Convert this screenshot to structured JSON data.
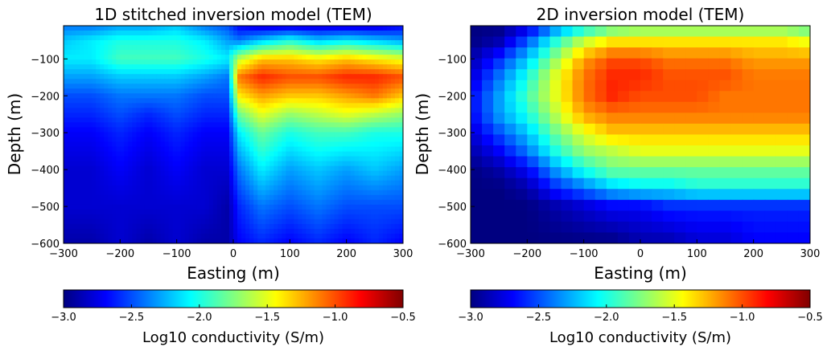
{
  "colors": {
    "jet": [
      "#000080",
      "#0000ff",
      "#0080ff",
      "#00ffff",
      "#80ff80",
      "#ffff00",
      "#ff8000",
      "#ff0000",
      "#800000"
    ],
    "axis": "#000000",
    "background": "#ffffff"
  },
  "colorbar": {
    "vmin": -3.0,
    "vmax": -0.5,
    "ticks": [
      "−3.0",
      "−2.5",
      "−2.0",
      "−1.5",
      "−1.0",
      "−0.5"
    ],
    "label": "Log10 conductivity (S/m)"
  },
  "chart_data": [
    {
      "type": "heatmap",
      "title": "1D stitched inversion model (TEM)",
      "xlabel": "Easting (m)",
      "ylabel": "Depth (m)",
      "xlim": [
        -300,
        300
      ],
      "ylim": [
        -600,
        -10
      ],
      "xticks": [
        "−300",
        "−200",
        "−100",
        "0",
        "100",
        "200",
        "300"
      ],
      "yticks": [
        "−600",
        "−500",
        "−400",
        "−300",
        "−200",
        "−100"
      ],
      "x": [
        -300,
        -250,
        -200,
        -150,
        -100,
        -50,
        -10,
        10,
        50,
        100,
        150,
        200,
        250,
        300
      ],
      "depth": [
        -10,
        -50,
        -100,
        -150,
        -200,
        -250,
        -300,
        -400,
        -500,
        -600
      ],
      "values": [
        [
          -2.4,
          -2.4,
          -2.3,
          -2.3,
          -2.2,
          -2.4,
          -2.5,
          -2.7,
          -2.8,
          -2.8,
          -2.8,
          -2.8,
          -2.8,
          -2.7
        ],
        [
          -2.2,
          -2.1,
          -2.0,
          -2.0,
          -2.0,
          -2.1,
          -2.3,
          -2.4,
          -2.2,
          -2.0,
          -2.2,
          -2.1,
          -2.2,
          -2.3
        ],
        [
          -2.1,
          -2.1,
          -1.9,
          -1.9,
          -1.9,
          -2.0,
          -2.1,
          -1.6,
          -1.3,
          -1.3,
          -1.4,
          -1.3,
          -1.4,
          -1.5
        ],
        [
          -2.3,
          -2.3,
          -2.2,
          -2.2,
          -2.2,
          -2.3,
          -2.4,
          -1.1,
          -0.9,
          -1.0,
          -1.0,
          -0.9,
          -0.9,
          -1.0
        ],
        [
          -2.5,
          -2.5,
          -2.4,
          -2.4,
          -2.4,
          -2.5,
          -2.5,
          -1.4,
          -1.2,
          -1.3,
          -1.3,
          -1.2,
          -1.1,
          -1.3
        ],
        [
          -2.6,
          -2.6,
          -2.5,
          -2.6,
          -2.5,
          -2.6,
          -2.6,
          -1.8,
          -1.5,
          -1.7,
          -1.6,
          -1.5,
          -1.6,
          -1.7
        ],
        [
          -2.7,
          -2.7,
          -2.6,
          -2.7,
          -2.6,
          -2.7,
          -2.7,
          -2.1,
          -1.8,
          -2.0,
          -1.9,
          -1.9,
          -2.0,
          -2.0
        ],
        [
          -2.8,
          -2.8,
          -2.7,
          -2.8,
          -2.7,
          -2.8,
          -2.8,
          -2.4,
          -2.1,
          -2.3,
          -2.2,
          -2.3,
          -2.2,
          -2.3
        ],
        [
          -2.8,
          -2.8,
          -2.8,
          -2.8,
          -2.8,
          -2.8,
          -2.9,
          -2.6,
          -2.4,
          -2.5,
          -2.4,
          -2.5,
          -2.5,
          -2.5
        ],
        [
          -2.9,
          -2.9,
          -2.8,
          -2.9,
          -2.8,
          -2.9,
          -2.9,
          -2.7,
          -2.6,
          -2.7,
          -2.6,
          -2.7,
          -2.6,
          -2.7
        ]
      ]
    },
    {
      "type": "heatmap",
      "title": "2D inversion model (TEM)",
      "xlabel": "Easting (m)",
      "ylabel": "Depth (m)",
      "xlim": [
        -300,
        300
      ],
      "ylim": [
        -600,
        -10
      ],
      "xticks": [
        "−300",
        "−200",
        "−100",
        "0",
        "100",
        "200",
        "300"
      ],
      "yticks": [
        "−600",
        "−500",
        "−400",
        "−300",
        "−200",
        "−100"
      ],
      "x": [
        -300,
        -250,
        -200,
        -150,
        -100,
        -50,
        0,
        50,
        100,
        150,
        200,
        250,
        300
      ],
      "depth": [
        -10,
        -50,
        -100,
        -150,
        -200,
        -250,
        -300,
        -350,
        -400,
        -450,
        -500,
        -600
      ],
      "values": [
        [
          -3.0,
          -3.0,
          -2.8,
          -2.4,
          -2.1,
          -1.9,
          -1.8,
          -1.8,
          -1.8,
          -1.8,
          -1.8,
          -1.8,
          -1.9
        ],
        [
          -3.0,
          -2.9,
          -2.5,
          -2.0,
          -1.6,
          -1.4,
          -1.4,
          -1.4,
          -1.4,
          -1.4,
          -1.4,
          -1.4,
          -1.5
        ],
        [
          -2.9,
          -2.6,
          -2.2,
          -1.7,
          -1.2,
          -1.0,
          -1.0,
          -1.1,
          -1.1,
          -1.1,
          -1.2,
          -1.2,
          -1.2
        ],
        [
          -2.8,
          -2.4,
          -2.0,
          -1.5,
          -1.1,
          -0.9,
          -0.9,
          -1.0,
          -1.0,
          -1.0,
          -1.1,
          -1.1,
          -1.1
        ],
        [
          -2.7,
          -2.3,
          -1.9,
          -1.5,
          -1.1,
          -0.9,
          -1.0,
          -1.0,
          -1.0,
          -1.1,
          -1.1,
          -1.1,
          -1.1
        ],
        [
          -2.7,
          -2.3,
          -2.0,
          -1.6,
          -1.2,
          -1.1,
          -1.1,
          -1.1,
          -1.1,
          -1.1,
          -1.1,
          -1.1,
          -1.1
        ],
        [
          -2.8,
          -2.5,
          -2.2,
          -1.8,
          -1.5,
          -1.3,
          -1.3,
          -1.3,
          -1.3,
          -1.3,
          -1.3,
          -1.3,
          -1.3
        ],
        [
          -2.9,
          -2.7,
          -2.4,
          -2.0,
          -1.7,
          -1.6,
          -1.5,
          -1.5,
          -1.5,
          -1.5,
          -1.5,
          -1.5,
          -1.5
        ],
        [
          -3.0,
          -2.9,
          -2.7,
          -2.3,
          -2.0,
          -1.8,
          -1.8,
          -1.8,
          -1.8,
          -1.8,
          -1.8,
          -1.8,
          -1.8
        ],
        [
          -3.0,
          -3.0,
          -2.9,
          -2.6,
          -2.4,
          -2.2,
          -2.1,
          -2.1,
          -2.0,
          -2.0,
          -2.0,
          -2.0,
          -2.0
        ],
        [
          -3.0,
          -3.0,
          -3.0,
          -2.9,
          -2.8,
          -2.7,
          -2.7,
          -2.6,
          -2.6,
          -2.6,
          -2.6,
          -2.6,
          -2.6
        ],
        [
          -3.0,
          -3.0,
          -3.0,
          -3.0,
          -3.0,
          -3.0,
          -2.9,
          -2.9,
          -2.8,
          -2.8,
          -2.7,
          -2.7,
          -2.7
        ]
      ]
    }
  ]
}
